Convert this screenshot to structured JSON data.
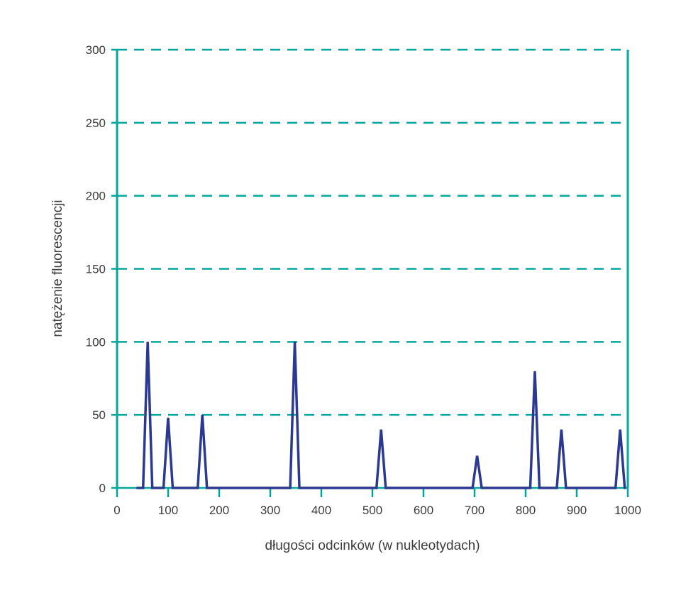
{
  "chart_data": {
    "type": "line",
    "title": "",
    "xlabel": "długości odcinków (w nukleotydach)",
    "ylabel": "natężenie fluorescencji",
    "xlim": [
      0,
      1000
    ],
    "ylim": [
      0,
      300
    ],
    "x_ticks": [
      0,
      100,
      200,
      300,
      400,
      500,
      600,
      700,
      800,
      900,
      1000
    ],
    "y_ticks": [
      0,
      50,
      100,
      150,
      200,
      250,
      300
    ],
    "y_gridlines": [
      50,
      100,
      150,
      200,
      250,
      300
    ],
    "grid_style": "dashed horizontal",
    "legend": "none",
    "colors": {
      "axis": "#00A79D",
      "line": "#2B3990",
      "text": "#3C3C3B",
      "background": "#FFFFFF"
    },
    "peaks": [
      {
        "x": 60,
        "height": 100
      },
      {
        "x": 100,
        "height": 48
      },
      {
        "x": 167,
        "height": 50
      },
      {
        "x": 348,
        "height": 100
      },
      {
        "x": 517,
        "height": 40
      },
      {
        "x": 705,
        "height": 22
      },
      {
        "x": 818,
        "height": 80
      },
      {
        "x": 870,
        "height": 40
      },
      {
        "x": 985,
        "height": 40
      }
    ],
    "series": [
      {
        "name": "natężenie fluorescencji",
        "points": [
          [
            40,
            0
          ],
          [
            51,
            0
          ],
          [
            60,
            100
          ],
          [
            69,
            0
          ],
          [
            91,
            0
          ],
          [
            100,
            48
          ],
          [
            109,
            0
          ],
          [
            158,
            0
          ],
          [
            167,
            50
          ],
          [
            176,
            0
          ],
          [
            339,
            0
          ],
          [
            348,
            100
          ],
          [
            357,
            0
          ],
          [
            508,
            0
          ],
          [
            517,
            40
          ],
          [
            526,
            0
          ],
          [
            696,
            0
          ],
          [
            705,
            22
          ],
          [
            714,
            0
          ],
          [
            809,
            0
          ],
          [
            818,
            80
          ],
          [
            827,
            0
          ],
          [
            861,
            0
          ],
          [
            870,
            40
          ],
          [
            879,
            0
          ],
          [
            976,
            0
          ],
          [
            985,
            40
          ],
          [
            994,
            0
          ]
        ]
      }
    ]
  }
}
